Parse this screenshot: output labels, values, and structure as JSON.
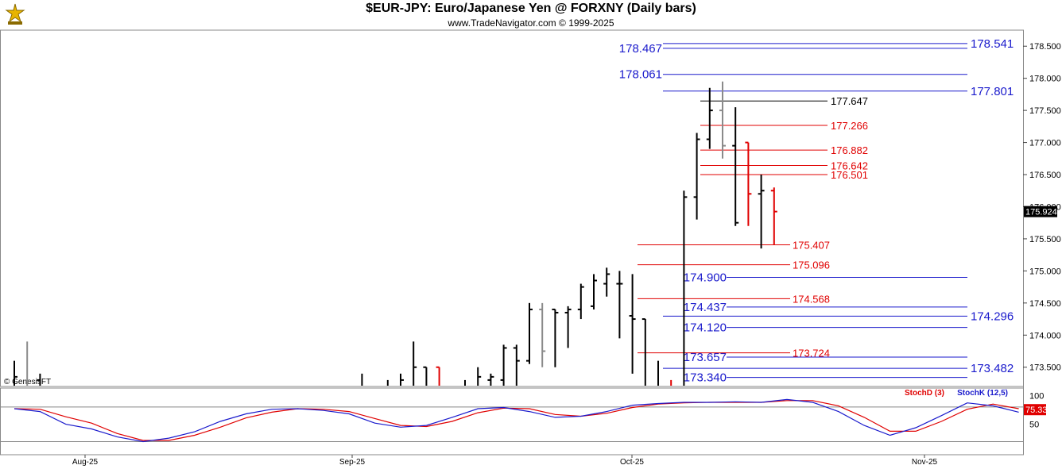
{
  "header": {
    "title": "$EUR-JPY:  Euro/Japanese Yen @ FORXNY  (Daily bars)",
    "subtitle": "www.TradeNavigator.com © 1999-2025"
  },
  "colors": {
    "up_bar": "#000000",
    "gray_bar": "#8a8a8a",
    "red_bar": "#e00000",
    "blue_level": "#1a1acc",
    "red_level": "#e00000",
    "black_level": "#000000",
    "stoch_d": "#e00000",
    "stoch_k": "#1a1acc"
  },
  "chart_data": {
    "type": "bar",
    "ohlc_note": "daily OHLC bars",
    "y_axis": {
      "ylim": [
        173.2,
        178.75
      ],
      "ticks": [
        "178.500",
        "178.000",
        "177.500",
        "177.000",
        "176.500",
        "176.000",
        "175.500",
        "175.000",
        "174.500",
        "174.000",
        "173.500"
      ],
      "last_price": "175.924"
    },
    "x_axis": {
      "ticks": [
        "Aug-25",
        "Sep-25",
        "Oct-25",
        "Nov-25"
      ]
    },
    "watermark": "© GenesisFT",
    "bars": [
      {
        "d": 0,
        "o": 173.1,
        "h": 173.6,
        "l": 172.6,
        "c": 173.35,
        "col": "black"
      },
      {
        "d": 1,
        "o": 173.0,
        "h": 173.9,
        "l": 172.7,
        "c": 173.2,
        "col": "gray"
      },
      {
        "d": 2,
        "o": 173.3,
        "h": 173.4,
        "l": 172.9,
        "c": 173.1,
        "col": "black"
      },
      {
        "d": 27,
        "o": 173.0,
        "h": 173.4,
        "l": 172.6,
        "c": 172.9,
        "col": "black"
      },
      {
        "d": 29,
        "o": 173.1,
        "h": 173.3,
        "l": 172.8,
        "c": 173.0,
        "col": "black"
      },
      {
        "d": 30,
        "o": 173.1,
        "h": 173.4,
        "l": 172.9,
        "c": 173.3,
        "col": "black"
      },
      {
        "d": 31,
        "o": 173.2,
        "h": 173.9,
        "l": 172.9,
        "c": 173.5,
        "col": "black"
      },
      {
        "d": 32,
        "o": 173.5,
        "h": 173.5,
        "l": 172.8,
        "c": 173.0,
        "col": "black"
      },
      {
        "d": 33,
        "o": 173.5,
        "h": 173.5,
        "l": 172.7,
        "c": 173.0,
        "col": "red"
      },
      {
        "d": 34,
        "o": 173.0,
        "h": 173.1,
        "l": 172.7,
        "c": 173.0,
        "col": "black"
      },
      {
        "d": 35,
        "o": 173.0,
        "h": 173.3,
        "l": 172.8,
        "c": 173.2,
        "col": "black"
      },
      {
        "d": 36,
        "o": 173.2,
        "h": 173.5,
        "l": 172.9,
        "c": 173.35,
        "col": "black"
      },
      {
        "d": 37,
        "o": 173.3,
        "h": 173.4,
        "l": 172.9,
        "c": 173.35,
        "col": "black"
      },
      {
        "d": 38,
        "o": 173.3,
        "h": 173.85,
        "l": 173.2,
        "c": 173.8,
        "col": "black"
      },
      {
        "d": 39,
        "o": 173.8,
        "h": 173.85,
        "l": 173.1,
        "c": 173.6,
        "col": "black"
      },
      {
        "d": 40,
        "o": 173.6,
        "h": 174.5,
        "l": 173.55,
        "c": 174.4,
        "col": "black"
      },
      {
        "d": 41,
        "o": 174.4,
        "h": 174.5,
        "l": 173.5,
        "c": 173.75,
        "col": "gray"
      },
      {
        "d": 42,
        "o": 174.4,
        "h": 174.4,
        "l": 173.5,
        "c": 174.35,
        "col": "black"
      },
      {
        "d": 43,
        "o": 174.35,
        "h": 174.45,
        "l": 173.8,
        "c": 174.4,
        "col": "black"
      },
      {
        "d": 44,
        "o": 174.4,
        "h": 174.8,
        "l": 174.25,
        "c": 174.75,
        "col": "black"
      },
      {
        "d": 45,
        "o": 174.45,
        "h": 174.95,
        "l": 174.4,
        "c": 174.85,
        "col": "black"
      },
      {
        "d": 46,
        "o": 174.8,
        "h": 175.05,
        "l": 174.6,
        "c": 174.95,
        "col": "black"
      },
      {
        "d": 47,
        "o": 174.8,
        "h": 175.0,
        "l": 173.95,
        "c": 174.8,
        "col": "black"
      },
      {
        "d": 48,
        "o": 174.3,
        "h": 174.95,
        "l": 173.4,
        "c": 174.25,
        "col": "black"
      },
      {
        "d": 49,
        "o": 174.25,
        "h": 174.25,
        "l": 172.9,
        "c": 173.0,
        "col": "black"
      },
      {
        "d": 50,
        "o": 173.1,
        "h": 173.6,
        "l": 172.8,
        "c": 173.05,
        "col": "black"
      },
      {
        "d": 51,
        "o": 173.1,
        "h": 173.3,
        "l": 172.9,
        "c": 173.05,
        "col": "red"
      },
      {
        "d": 52,
        "o": 173.0,
        "h": 176.25,
        "l": 172.9,
        "c": 176.15,
        "col": "black"
      },
      {
        "d": 53,
        "o": 176.15,
        "h": 177.15,
        "l": 175.8,
        "c": 177.05,
        "col": "black"
      },
      {
        "d": 54,
        "o": 177.05,
        "h": 177.85,
        "l": 176.9,
        "c": 177.5,
        "col": "black"
      },
      {
        "d": 55,
        "o": 177.5,
        "h": 177.95,
        "l": 176.75,
        "c": 176.95,
        "col": "gray"
      },
      {
        "d": 56,
        "o": 176.95,
        "h": 177.55,
        "l": 175.7,
        "c": 175.75,
        "col": "black"
      },
      {
        "d": 57,
        "o": 177.0,
        "h": 177.0,
        "l": 175.7,
        "c": 176.2,
        "col": "red"
      },
      {
        "d": 58,
        "o": 176.2,
        "h": 176.5,
        "l": 175.35,
        "c": 176.25,
        "col": "black"
      },
      {
        "d": 59,
        "o": 176.25,
        "h": 176.3,
        "l": 175.4,
        "c": 175.924,
        "col": "red"
      }
    ],
    "levels_right": [
      {
        "label": "178.541",
        "value": 178.541,
        "color": "blue"
      },
      {
        "label": "177.801",
        "value": 177.801,
        "color": "blue"
      },
      {
        "label": "174.296",
        "value": 174.296,
        "color": "blue"
      },
      {
        "label": "173.482",
        "value": 173.482,
        "color": "blue"
      }
    ],
    "levels_left": [
      {
        "label": "178.467",
        "value": 178.467,
        "color": "blue"
      },
      {
        "label": "178.061",
        "value": 178.061,
        "color": "blue"
      },
      {
        "label": "174.900",
        "value": 174.9,
        "color": "blue"
      },
      {
        "label": "174.437",
        "value": 174.437,
        "color": "blue"
      },
      {
        "label": "174.120",
        "value": 174.12,
        "color": "blue"
      },
      {
        "label": "173.657",
        "value": 173.657,
        "color": "blue"
      },
      {
        "label": "173.340",
        "value": 173.34,
        "color": "blue"
      }
    ],
    "levels_mid": [
      {
        "label": "177.647",
        "value": 177.647,
        "color": "black"
      },
      {
        "label": "177.266",
        "value": 177.266,
        "color": "red"
      },
      {
        "label": "176.882",
        "value": 176.882,
        "color": "red"
      },
      {
        "label": "176.642",
        "value": 176.642,
        "color": "red"
      },
      {
        "label": "176.501",
        "value": 176.501,
        "color": "red"
      }
    ],
    "levels_low_red": [
      {
        "label": "175.407",
        "value": 175.407,
        "color": "red"
      },
      {
        "label": "175.096",
        "value": 175.096,
        "color": "red"
      },
      {
        "label": "174.568",
        "value": 174.568,
        "color": "red"
      },
      {
        "label": "173.724",
        "value": 173.724,
        "color": "red"
      }
    ],
    "stochastic": {
      "legend_d": "StochD (3)",
      "legend_k": "StochK (12,5)",
      "ticks": [
        "100",
        "50"
      ],
      "ylim": [
        0,
        110
      ],
      "upper_line": 80,
      "lower_line": 20,
      "last_value": "75.33",
      "k": [
        [
          0,
          77
        ],
        [
          2,
          72
        ],
        [
          4,
          50
        ],
        [
          6,
          42
        ],
        [
          8,
          28
        ],
        [
          10,
          20
        ],
        [
          12,
          26
        ],
        [
          14,
          37
        ],
        [
          16,
          55
        ],
        [
          18,
          68
        ],
        [
          20,
          76
        ],
        [
          22,
          77
        ],
        [
          24,
          74
        ],
        [
          26,
          68
        ],
        [
          28,
          52
        ],
        [
          30,
          45
        ],
        [
          32,
          48
        ],
        [
          34,
          62
        ],
        [
          36,
          77
        ],
        [
          38,
          79
        ],
        [
          40,
          72
        ],
        [
          42,
          62
        ],
        [
          44,
          64
        ],
        [
          46,
          72
        ],
        [
          48,
          83
        ],
        [
          50,
          86
        ],
        [
          52,
          88
        ],
        [
          54,
          88
        ],
        [
          56,
          89
        ],
        [
          58,
          88
        ],
        [
          60,
          93
        ],
        [
          62,
          88
        ],
        [
          64,
          72
        ],
        [
          66,
          48
        ],
        [
          68,
          31
        ],
        [
          70,
          44
        ],
        [
          72,
          65
        ],
        [
          74,
          87
        ],
        [
          76,
          82
        ],
        [
          78,
          71
        ]
      ],
      "d": [
        [
          0,
          77
        ],
        [
          2,
          76
        ],
        [
          4,
          63
        ],
        [
          6,
          52
        ],
        [
          8,
          34
        ],
        [
          10,
          22
        ],
        [
          12,
          22
        ],
        [
          14,
          31
        ],
        [
          16,
          45
        ],
        [
          18,
          61
        ],
        [
          20,
          71
        ],
        [
          22,
          77
        ],
        [
          24,
          76
        ],
        [
          26,
          72
        ],
        [
          28,
          60
        ],
        [
          30,
          48
        ],
        [
          32,
          46
        ],
        [
          34,
          55
        ],
        [
          36,
          70
        ],
        [
          38,
          78
        ],
        [
          40,
          77
        ],
        [
          42,
          67
        ],
        [
          44,
          64
        ],
        [
          46,
          69
        ],
        [
          48,
          79
        ],
        [
          50,
          85
        ],
        [
          52,
          87
        ],
        [
          54,
          88
        ],
        [
          56,
          88
        ],
        [
          58,
          88
        ],
        [
          60,
          91
        ],
        [
          62,
          91
        ],
        [
          64,
          82
        ],
        [
          66,
          62
        ],
        [
          68,
          38
        ],
        [
          70,
          38
        ],
        [
          72,
          55
        ],
        [
          74,
          76
        ],
        [
          76,
          85
        ],
        [
          78,
          77
        ]
      ]
    }
  }
}
